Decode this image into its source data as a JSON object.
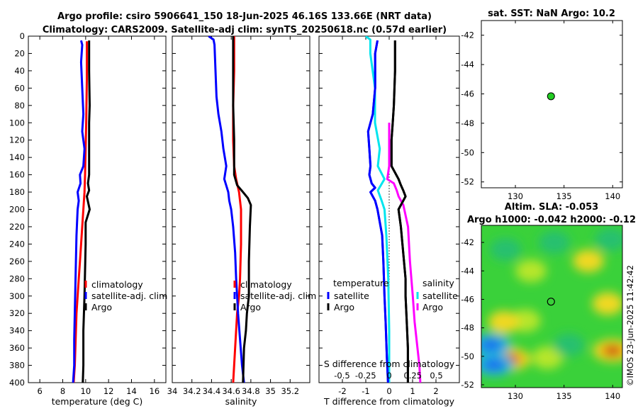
{
  "header": {
    "line1": "Argo profile: csiro 5906641_150 18-Jun-2025 46.16S 133.66E (NRT data)",
    "line2": "Climatology: CARS2009. Satellite-adj clim: synTS_20250618.nc (0.57d earlier)"
  },
  "colors": {
    "climatology": "#ff0000",
    "satellite": "#0000ff",
    "argo": "#000000",
    "sal_satellite": "#00e5ee",
    "sal_argo": "#ff00ff",
    "marker": "#22cc22"
  },
  "credit": "©IMOS 23-Jun-2025 11:42:42",
  "chart_data": [
    {
      "type": "line",
      "name": "temperature-profile",
      "xlabel": "temperature (deg C)",
      "ylabel": "",
      "xlim": [
        5,
        17
      ],
      "ylim": [
        400,
        0
      ],
      "xticks": [
        6,
        8,
        10,
        12,
        14,
        16
      ],
      "yticks": [
        0,
        20,
        40,
        60,
        80,
        100,
        120,
        140,
        160,
        180,
        200,
        220,
        240,
        260,
        280,
        300,
        320,
        340,
        360,
        380,
        400
      ],
      "legend": [
        "climatology",
        "satellite-adj. clim",
        "Argo"
      ],
      "series": [
        {
          "name": "climatology",
          "color": "#ff0000",
          "x": [
            10.1,
            10.1,
            10.1,
            10.05,
            10.0,
            9.95,
            9.9,
            9.8,
            9.7,
            9.6,
            9.5,
            9.4,
            9.3,
            9.2,
            9.15,
            9.1,
            9.05,
            9.0,
            8.95
          ],
          "y": [
            6,
            20,
            50,
            100,
            130,
            160,
            180,
            200,
            220,
            240,
            260,
            280,
            300,
            320,
            340,
            360,
            380,
            390,
            400
          ]
        },
        {
          "name": "satellite-adj. clim",
          "color": "#0000ff",
          "x": [
            9.6,
            9.7,
            9.6,
            9.7,
            9.8,
            9.7,
            9.9,
            9.8,
            9.5,
            9.55,
            9.3,
            9.4,
            9.3,
            9.2,
            9.15,
            9.1,
            9.05,
            9.0,
            9.0,
            8.9
          ],
          "y": [
            5,
            10,
            30,
            60,
            90,
            110,
            130,
            150,
            160,
            170,
            180,
            190,
            200,
            230,
            260,
            290,
            320,
            350,
            380,
            400
          ]
        },
        {
          "name": "Argo",
          "color": "#000000",
          "x": [
            10.3,
            10.3,
            10.35,
            10.3,
            10.3,
            10.3,
            10.2,
            10.3,
            10.1,
            10.35,
            10.0,
            10.0,
            9.95,
            9.9,
            9.85,
            9.8,
            9.8,
            9.75
          ],
          "y": [
            5,
            40,
            80,
            100,
            130,
            160,
            170,
            178,
            185,
            200,
            215,
            240,
            270,
            300,
            320,
            340,
            380,
            400
          ]
        }
      ]
    },
    {
      "type": "line",
      "name": "salinity-profile",
      "xlabel": "salinity",
      "ylabel": "",
      "xlim": [
        34,
        35.4
      ],
      "ylim": [
        400,
        0
      ],
      "xticks": [
        34,
        34.2,
        34.4,
        34.6,
        34.8,
        35,
        35.2
      ],
      "xticklabels": [
        "34",
        "34.2",
        "34.4",
        "34.6",
        "34.8",
        "35",
        "35.2"
      ],
      "legend": [
        "climatology",
        "satellite-adj. clim",
        "Argo"
      ],
      "series": [
        {
          "name": "climatology",
          "color": "#ff0000",
          "x": [
            34.63,
            34.63,
            34.62,
            34.62,
            34.63,
            34.65,
            34.68,
            34.7,
            34.7,
            34.69,
            34.68,
            34.66,
            34.65,
            34.64,
            34.63,
            34.62
          ],
          "y": [
            0,
            40,
            80,
            120,
            150,
            165,
            180,
            200,
            240,
            280,
            300,
            320,
            340,
            360,
            380,
            400
          ]
        },
        {
          "name": "satellite-adj. clim",
          "color": "#0000ff",
          "x": [
            34.37,
            34.42,
            34.43,
            34.44,
            34.45,
            34.47,
            34.5,
            34.52,
            34.55,
            34.53,
            34.57,
            34.58,
            34.6,
            34.62,
            34.64,
            34.65,
            34.66,
            34.67,
            34.69,
            34.71,
            34.73
          ],
          "y": [
            0,
            4,
            10,
            40,
            70,
            90,
            110,
            130,
            150,
            165,
            180,
            190,
            200,
            220,
            250,
            280,
            300,
            320,
            350,
            380,
            400
          ]
        },
        {
          "name": "Argo",
          "color": "#000000",
          "x": [
            34.62,
            34.62,
            34.62,
            34.63,
            34.63,
            34.66,
            34.72,
            34.77,
            34.8,
            34.79,
            34.78,
            34.78,
            34.76,
            34.75,
            34.73,
            34.72
          ],
          "y": [
            0,
            40,
            80,
            120,
            160,
            172,
            180,
            187,
            195,
            220,
            260,
            300,
            320,
            340,
            360,
            400
          ]
        }
      ]
    },
    {
      "type": "line",
      "name": "difference-profile",
      "xlabel": "T difference from climatology",
      "xlabel_top": "S difference from climatology",
      "xlim": [
        -3,
        3
      ],
      "ylim": [
        400,
        0
      ],
      "xticks": [
        -2,
        -1,
        0,
        1,
        2
      ],
      "xticklabels": [
        "-2",
        "-1",
        "0",
        "1",
        "2"
      ],
      "sticks": [
        -0.5,
        -0.25,
        0,
        0.25,
        0.5
      ],
      "sticklabels": [
        "-0.5",
        "-0.25",
        "0",
        "0.25",
        "0.5"
      ],
      "legend_left_title": "temperature",
      "legend_right_title": "salinity",
      "legend_left": [
        "satellite",
        "Argo"
      ],
      "legend_right": [
        "satellite",
        "Argo"
      ],
      "series": [
        {
          "name": "T satellite",
          "color": "#0000ff",
          "x": [
            -0.5,
            -0.6,
            -0.6,
            -0.7,
            -0.9,
            -0.85,
            -0.8,
            -0.85,
            -0.75,
            -0.6,
            -0.8,
            -0.6,
            -0.5,
            -0.3,
            -0.25,
            -0.2,
            -0.15,
            -0.1,
            -0.05
          ],
          "y": [
            5,
            20,
            60,
            90,
            110,
            130,
            150,
            160,
            170,
            175,
            180,
            190,
            200,
            230,
            260,
            300,
            330,
            370,
            400
          ]
        },
        {
          "name": "T Argo",
          "color": "#000000",
          "x": [
            0.25,
            0.25,
            0.2,
            0.15,
            0.1,
            0.1,
            0.4,
            0.5,
            0.6,
            0.7,
            0.4,
            0.5,
            0.6,
            0.7,
            0.7,
            0.75,
            0.8,
            0.8
          ],
          "y": [
            5,
            40,
            80,
            100,
            120,
            150,
            165,
            172,
            178,
            185,
            200,
            220,
            250,
            280,
            300,
            330,
            360,
            400
          ]
        }
      ],
      "sseries": [
        {
          "name": "S satellite",
          "color": "#00e5ee",
          "x": [
            -0.25,
            -0.2,
            -0.2,
            -0.15,
            -0.15,
            -0.1,
            -0.12,
            -0.05,
            -0.12,
            -0.08,
            -0.05,
            -0.03,
            -0.01,
            0.0,
            0.0
          ],
          "y": [
            0,
            4,
            20,
            60,
            100,
            130,
            150,
            165,
            178,
            190,
            200,
            230,
            280,
            340,
            400
          ]
        },
        {
          "name": "S Argo",
          "color": "#ff00ff",
          "x": [
            0.0,
            0.0,
            0.0,
            -0.02,
            0.05,
            0.08,
            0.1,
            0.15,
            0.2,
            0.22,
            0.25,
            0.27,
            0.3,
            0.32,
            0.33
          ],
          "y": [
            100,
            130,
            150,
            165,
            170,
            178,
            185,
            195,
            220,
            260,
            300,
            330,
            360,
            380,
            400
          ]
        }
      ]
    },
    {
      "type": "scatter",
      "name": "sst-map",
      "title": "sat. SST: NaN Argo: 10.2",
      "xlim": [
        126.5,
        141
      ],
      "ylim": [
        -52.4,
        -41
      ],
      "xticks": [
        130,
        135,
        140
      ],
      "yticks": [
        -42,
        -44,
        -46,
        -48,
        -50,
        -52
      ],
      "points": [
        {
          "x": 133.66,
          "y": -46.16,
          "label": "Argo"
        }
      ]
    },
    {
      "type": "heatmap",
      "name": "sla-map",
      "title1": "Altim. SLA: -0.053",
      "title2": "Argo h1000: -0.042 h2000: -0.12",
      "xlim": [
        126.5,
        141
      ],
      "ylim": [
        -52.2,
        -40.8
      ],
      "xticks": [
        130,
        135,
        140
      ],
      "yticks": [
        -42,
        -44,
        -46,
        -48,
        -50,
        -52
      ],
      "points": [
        {
          "x": 133.66,
          "y": -46.16,
          "label": "Argo"
        }
      ],
      "blobs": [
        {
          "x": 129.5,
          "y": -50.2,
          "v": 1.0
        },
        {
          "x": 127.5,
          "y": -49.2,
          "v": -1.0
        },
        {
          "x": 127.8,
          "y": -50.6,
          "v": -0.9
        },
        {
          "x": 140.0,
          "y": -49.6,
          "v": 0.9
        },
        {
          "x": 133.3,
          "y": -50.1,
          "v": 0.25
        },
        {
          "x": 131.0,
          "y": -47.5,
          "v": 0.2
        },
        {
          "x": 137.5,
          "y": -43.3,
          "v": 0.3
        },
        {
          "x": 139.5,
          "y": -46.3,
          "v": 0.35
        },
        {
          "x": 128.8,
          "y": -47.6,
          "v": 0.35
        },
        {
          "x": 131.6,
          "y": -44.0,
          "v": 0.25
        },
        {
          "x": 135.5,
          "y": -49.2,
          "v": -0.3
        },
        {
          "x": 139.8,
          "y": -41.8,
          "v": -0.25
        },
        {
          "x": 129.0,
          "y": -42.5,
          "v": -0.3
        },
        {
          "x": 134.0,
          "y": -42.0,
          "v": -0.2
        }
      ]
    }
  ]
}
